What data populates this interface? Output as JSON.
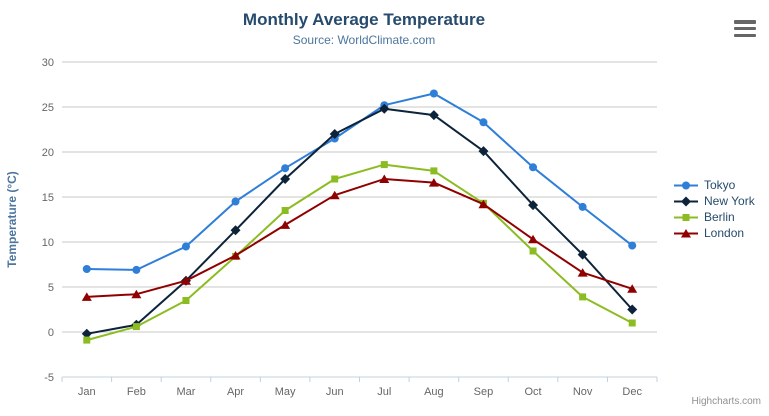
{
  "title": {
    "text": "Monthly Average Temperature"
  },
  "subtitle": {
    "text": "Source: WorldClimate.com"
  },
  "credits": {
    "text": "Highcharts.com"
  },
  "export_menu": {
    "icon": "hamburger-icon"
  },
  "styles": {
    "background": "#ffffff",
    "title_color": "#274b6d",
    "subtitle_color": "#4d759e",
    "axis_title_color": "#4d759e",
    "tick_color": "#666666",
    "grid_color": "#c8c8c8",
    "axis_color": "#c0d0e0",
    "legend_color": "#274b6d",
    "credits_color": "#909090",
    "hamburger_color": "#666666"
  },
  "chart_data": {
    "type": "line",
    "title": "Monthly Average Temperature",
    "subtitle": "Source: WorldClimate.com",
    "categories": [
      "Jan",
      "Feb",
      "Mar",
      "Apr",
      "May",
      "Jun",
      "Jul",
      "Aug",
      "Sep",
      "Oct",
      "Nov",
      "Dec"
    ],
    "series": [
      {
        "name": "Tokyo",
        "color": "#2f7ed8",
        "marker": "circle",
        "values": [
          7.0,
          6.9,
          9.5,
          14.5,
          18.2,
          21.5,
          25.2,
          26.5,
          23.3,
          18.3,
          13.9,
          9.6
        ]
      },
      {
        "name": "New York",
        "color": "#0d233a",
        "marker": "diamond",
        "values": [
          -0.2,
          0.8,
          5.7,
          11.3,
          17.0,
          22.0,
          24.8,
          24.1,
          20.1,
          14.1,
          8.6,
          2.5
        ]
      },
      {
        "name": "Berlin",
        "color": "#8bbc21",
        "marker": "square",
        "values": [
          -0.9,
          0.6,
          3.5,
          8.4,
          13.5,
          17.0,
          18.6,
          17.9,
          14.3,
          9.0,
          3.9,
          1.0
        ]
      },
      {
        "name": "London",
        "color": "#910000",
        "marker": "triangle",
        "values": [
          3.9,
          4.2,
          5.7,
          8.5,
          11.9,
          15.2,
          17.0,
          16.6,
          14.2,
          10.3,
          6.6,
          4.8
        ]
      }
    ],
    "xlabel": "",
    "ylabel": "Temperature (°C)",
    "ylim": [
      -5,
      30
    ],
    "ytick_interval": 5,
    "grid": true,
    "legend_position": "right"
  }
}
